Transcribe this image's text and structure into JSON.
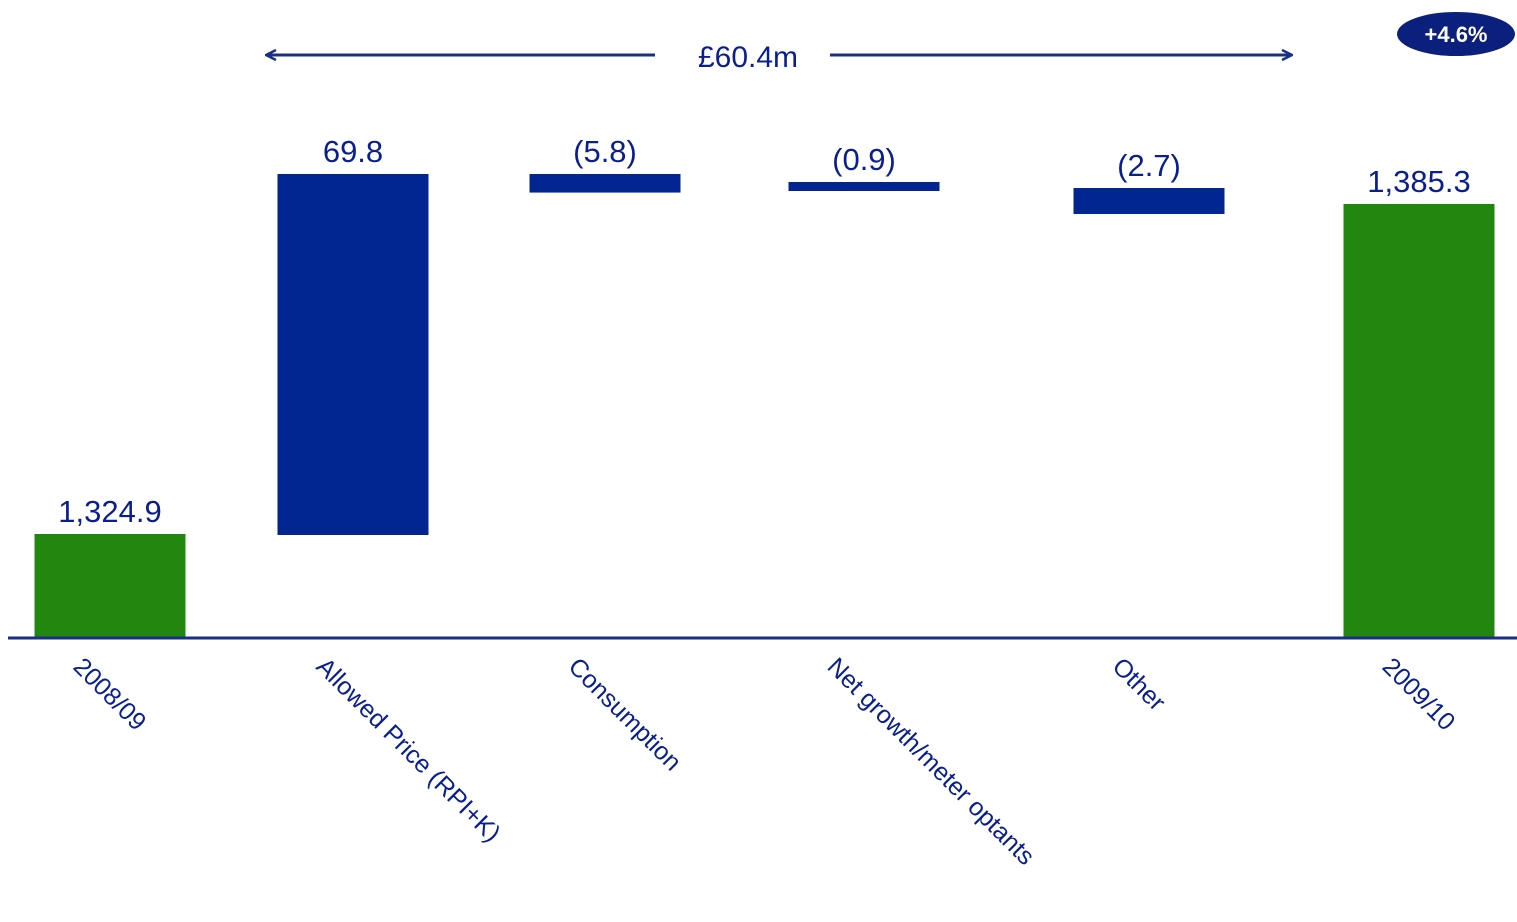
{
  "chart_data": {
    "type": "bar",
    "subtype": "waterfall",
    "categories": [
      "2008/09",
      "Allowed Price (RPI+K)",
      "Consumption",
      "Net growth/meter optants",
      "Other",
      "2009/10"
    ],
    "values": [
      1324.9,
      69.8,
      -5.8,
      -0.9,
      -2.7,
      1385.3
    ],
    "value_labels": [
      "1,324.9",
      "69.8",
      "(5.8)",
      "(0.9)",
      "(2.7)",
      "1,385.3"
    ],
    "kinds": [
      "total",
      "delta",
      "delta",
      "delta",
      "delta",
      "total"
    ],
    "bracket_label": "£60.4m",
    "badge": "+4.6%",
    "colors": {
      "total": "#22870f",
      "delta": "#012591",
      "text": "#0a1f8f",
      "axis": "#1b2f8a",
      "badge": "#0b1f7c"
    },
    "ylim": [
      1200,
      1400
    ],
    "xlabel": "",
    "ylabel": "",
    "title": ""
  }
}
